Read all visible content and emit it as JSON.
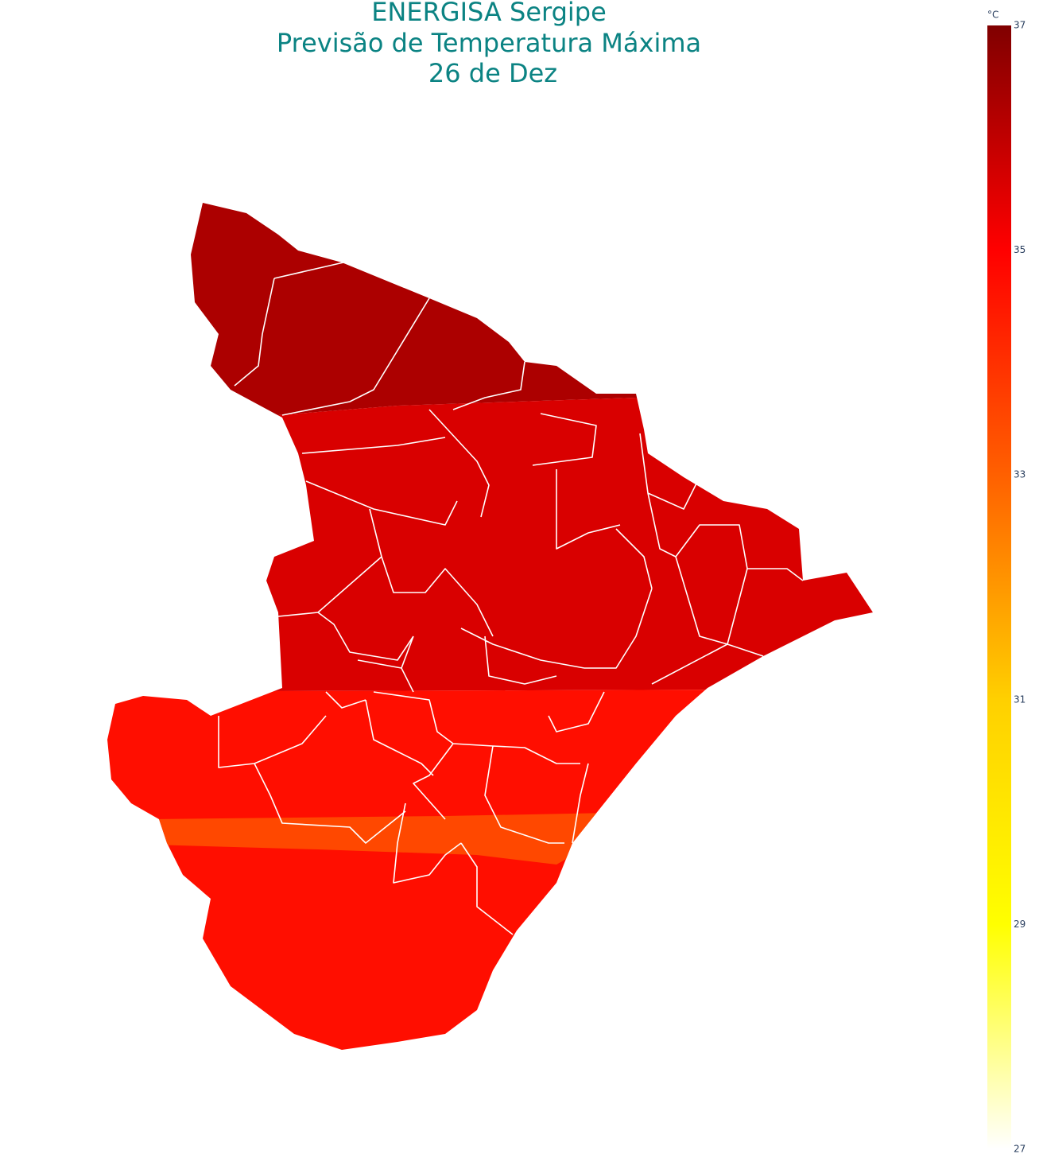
{
  "title": {
    "lines": [
      "ENERGISA Sergipe",
      "Previsão de Temperatura Máxima",
      "26 de Dez"
    ]
  },
  "colorbar": {
    "title": "°C",
    "range": [
      27,
      37
    ],
    "ticks": [
      27,
      29,
      31,
      33,
      35,
      37
    ],
    "colorscale": [
      [
        27,
        "#ffffff"
      ],
      [
        29,
        "#ffff00"
      ],
      [
        31,
        "#ffd000"
      ],
      [
        33,
        "#ff6000"
      ],
      [
        35,
        "#ff0000"
      ],
      [
        37,
        "#800000"
      ]
    ]
  },
  "map": {
    "zones": [
      {
        "value": 36.3
      },
      {
        "value": 35.6
      },
      {
        "value": 34.7
      },
      {
        "value": 33.5
      }
    ]
  }
}
